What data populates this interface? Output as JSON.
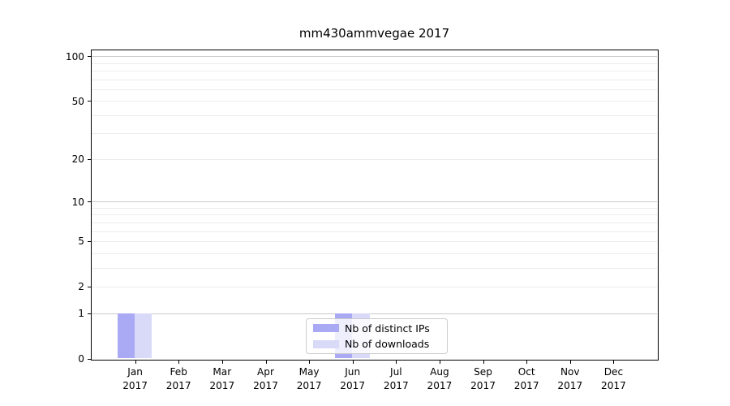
{
  "title": "mm430ammvegae 2017",
  "chart_data": {
    "type": "bar",
    "title": "mm430ammvegae 2017",
    "categories": [
      "Jan",
      "Feb",
      "Mar",
      "Apr",
      "May",
      "Jun",
      "Jul",
      "Aug",
      "Sep",
      "Oct",
      "Nov",
      "Dec"
    ],
    "x_year_label": "2017",
    "series": [
      {
        "name": "Nb of distinct IPs",
        "color": "#a9aaf3",
        "values": [
          1,
          0,
          0,
          0,
          0,
          1,
          0,
          0,
          0,
          0,
          0,
          0
        ]
      },
      {
        "name": "Nb of downloads",
        "color": "#d9daf8",
        "values": [
          1,
          0,
          0,
          0,
          0,
          1,
          0,
          0,
          0,
          0,
          0,
          0
        ]
      }
    ],
    "y_ticks": [
      0,
      1,
      2,
      5,
      10,
      20,
      50,
      100
    ],
    "ylim": [
      0,
      110
    ],
    "scale": "log1p",
    "grid": "both",
    "legend_position": "lower center"
  }
}
